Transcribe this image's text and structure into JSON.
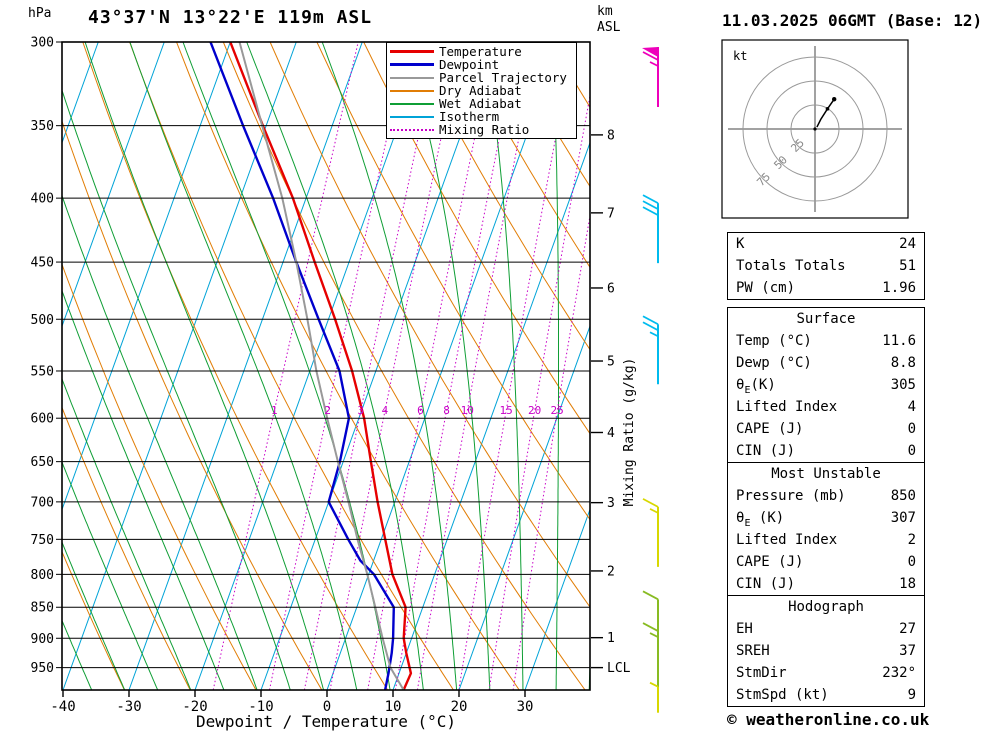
{
  "title": "43°37'N 13°22'E 119m ASL",
  "date_title": "11.03.2025 06GMT (Base: 12)",
  "copyright": "© weatheronline.co.uk",
  "axes": {
    "pressure_unit": "hPa",
    "pressure_ticks": [
      300,
      350,
      400,
      450,
      500,
      550,
      600,
      650,
      700,
      750,
      800,
      850,
      900,
      950
    ],
    "temp_ticks": [
      -40,
      -30,
      -20,
      -10,
      0,
      10,
      20,
      30
    ],
    "temp_axis_label": "Dewpoint / Temperature (°C)",
    "km_unit_lines": [
      "km",
      "ASL"
    ],
    "km_ticks": [
      {
        "km": 8,
        "p": 356
      },
      {
        "km": 7,
        "p": 411
      },
      {
        "km": 6,
        "p": 472
      },
      {
        "km": 5,
        "p": 540
      },
      {
        "km": 4,
        "p": 616
      },
      {
        "km": 3,
        "p": 701
      },
      {
        "km": 2,
        "p": 795
      },
      {
        "km": 1,
        "p": 899
      }
    ],
    "lcl": {
      "label": "LCL",
      "p": 950
    },
    "mixing_axis_label": "Mixing Ratio (g/kg)",
    "mixing_ratio_values": [
      1,
      2,
      3,
      4,
      6,
      8,
      10,
      15,
      20,
      25
    ]
  },
  "legend": [
    {
      "label": "Temperature",
      "color": "#e60000",
      "width": 3,
      "dotted": false
    },
    {
      "label": "Dewpoint",
      "color": "#0000cc",
      "width": 3,
      "dotted": false
    },
    {
      "label": "Parcel Trajectory",
      "color": "#999999",
      "width": 2,
      "dotted": false
    },
    {
      "label": "Dry Adiabat",
      "color": "#e17d05",
      "width": 2,
      "dotted": false
    },
    {
      "label": "Wet Adiabat",
      "color": "#0f9e35",
      "width": 2,
      "dotted": false
    },
    {
      "label": "Isotherm",
      "color": "#00a3d7",
      "width": 2,
      "dotted": false
    },
    {
      "label": "Mixing Ratio",
      "color": "#c800c8",
      "width": 2,
      "dotted": true
    }
  ],
  "chart_data": {
    "type": "skewt",
    "pressure_axis": {
      "min": 300,
      "max": 990,
      "scale": "log"
    },
    "temp_axis": {
      "min": -40,
      "max": 40,
      "unit": "°C"
    },
    "series": [
      {
        "name": "Temperature",
        "color": "#e60000",
        "width": 2.4,
        "points": [
          [
            990,
            11.6
          ],
          [
            960,
            11.8
          ],
          [
            925,
            10.0
          ],
          [
            900,
            8.8
          ],
          [
            850,
            7.4
          ],
          [
            800,
            3.6
          ],
          [
            750,
            0.6
          ],
          [
            700,
            -2.6
          ],
          [
            650,
            -5.8
          ],
          [
            600,
            -9.2
          ],
          [
            550,
            -13.6
          ],
          [
            500,
            -19.0
          ],
          [
            450,
            -25.2
          ],
          [
            400,
            -32.0
          ],
          [
            350,
            -40.5
          ],
          [
            300,
            -50.0
          ]
        ]
      },
      {
        "name": "Dewpoint",
        "color": "#0000cc",
        "width": 2.4,
        "points": [
          [
            990,
            8.8
          ],
          [
            960,
            8.4
          ],
          [
            925,
            7.8
          ],
          [
            900,
            7.2
          ],
          [
            850,
            5.6
          ],
          [
            800,
            0.8
          ],
          [
            780,
            -2.0
          ],
          [
            750,
            -5.0
          ],
          [
            700,
            -10.0
          ],
          [
            650,
            -10.5
          ],
          [
            600,
            -11.5
          ],
          [
            550,
            -15.5
          ],
          [
            500,
            -21.5
          ],
          [
            450,
            -28.0
          ],
          [
            400,
            -35.0
          ],
          [
            350,
            -43.5
          ],
          [
            300,
            -53.0
          ]
        ]
      },
      {
        "name": "Parcel Trajectory",
        "color": "#999999",
        "width": 2,
        "points": [
          [
            990,
            11.6
          ],
          [
            950,
            8.4
          ],
          [
            900,
            5.6
          ],
          [
            850,
            2.8
          ],
          [
            800,
            -0.2
          ],
          [
            750,
            -3.6
          ],
          [
            700,
            -7.0
          ],
          [
            650,
            -10.8
          ],
          [
            600,
            -14.8
          ],
          [
            550,
            -19.0
          ],
          [
            500,
            -23.2
          ],
          [
            450,
            -28.0
          ],
          [
            400,
            -33.6
          ],
          [
            350,
            -40.6
          ],
          [
            300,
            -48.6
          ]
        ]
      }
    ],
    "grid": {
      "isotherms_c": {
        "min": -80,
        "max": 40,
        "step": 10
      },
      "dry_adiabats_c": {
        "min": -40,
        "max": 120,
        "step": 10
      },
      "wet_adiabats_c": {
        "min": -40,
        "max": 40,
        "step": 5
      },
      "mixing_ratio_gkg": [
        1,
        2,
        3,
        4,
        6,
        8,
        10,
        15,
        20,
        25
      ]
    }
  },
  "wind_barbs": [
    {
      "pressure": 300,
      "color": "#ee00bb",
      "flag": 1,
      "full": 1,
      "half": 1
    },
    {
      "pressure": 400,
      "color": "#00bbee",
      "flag": 0,
      "full": 3,
      "half": 0
    },
    {
      "pressure": 500,
      "color": "#00bbee",
      "flag": 0,
      "full": 2,
      "half": 1
    },
    {
      "pressure": 700,
      "color": "#d8d800",
      "flag": 0,
      "full": 1,
      "half": 1
    },
    {
      "pressure": 830,
      "color": "#88bb22",
      "flag": 0,
      "full": 1,
      "half": 0
    },
    {
      "pressure": 880,
      "color": "#88bb22",
      "flag": 0,
      "full": 1,
      "half": 1
    },
    {
      "pressure": 975,
      "color": "#d8d800",
      "flag": 0,
      "full": 0,
      "half": 1
    }
  ],
  "hodograph": {
    "unit": "kt",
    "rings": [
      25,
      50,
      75
    ],
    "trace_kt": [
      [
        2,
        2
      ],
      [
        6,
        10
      ],
      [
        13,
        21
      ],
      [
        20,
        31
      ]
    ]
  },
  "tables": [
    {
      "header": null,
      "rows": [
        [
          "K",
          "24"
        ],
        [
          "Totals Totals",
          "51"
        ],
        [
          "PW (cm)",
          "1.96"
        ]
      ]
    },
    {
      "header": "Surface",
      "rows": [
        [
          "Temp (°C)",
          "11.6"
        ],
        [
          "Dewp (°C)",
          "8.8"
        ],
        [
          [
            "θ",
            "E",
            "(K)"
          ],
          "305"
        ],
        [
          "Lifted Index",
          "4"
        ],
        [
          "CAPE (J)",
          "0"
        ],
        [
          "CIN (J)",
          "0"
        ]
      ]
    },
    {
      "header": "Most Unstable",
      "rows": [
        [
          "Pressure (mb)",
          "850"
        ],
        [
          [
            "θ",
            "E",
            " (K)"
          ],
          "307"
        ],
        [
          "Lifted Index",
          "2"
        ],
        [
          "CAPE (J)",
          "0"
        ],
        [
          "CIN (J)",
          "18"
        ]
      ]
    },
    {
      "header": "Hodograph",
      "rows": [
        [
          "EH",
          "27"
        ],
        [
          "SREH",
          "37"
        ],
        [
          "StmDir",
          "232°"
        ],
        [
          "StmSpd (kt)",
          "9"
        ]
      ]
    }
  ]
}
